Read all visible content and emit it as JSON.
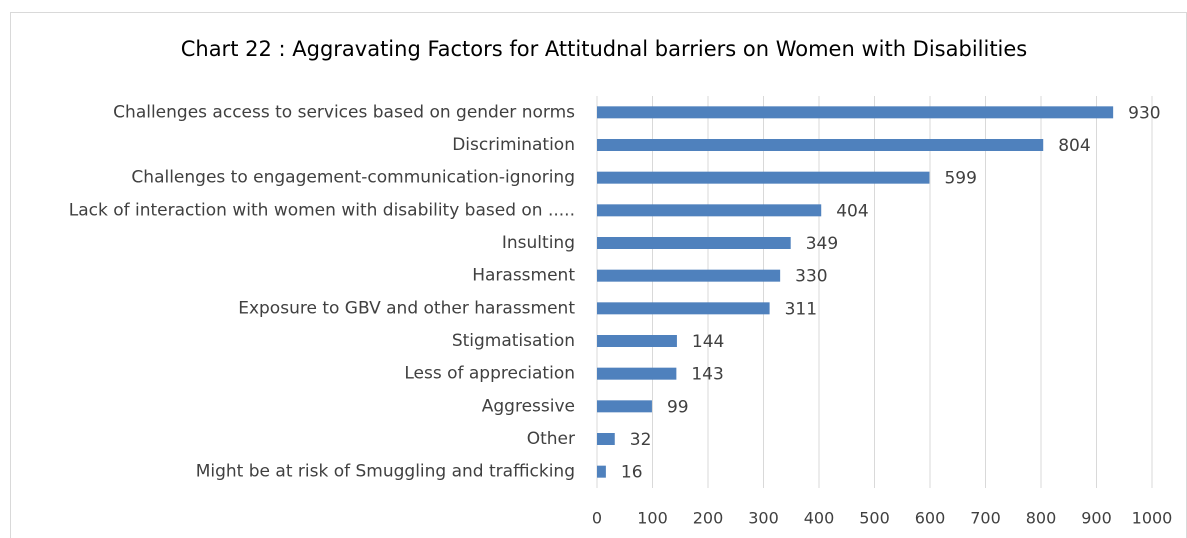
{
  "chart_data": {
    "type": "barh",
    "title": "Chart 22 : Aggravating  Factors  for Attitudnal barriers  on Women with Disabilities",
    "categories": [
      "Challenges access to services based on gender norms",
      "Discrimination",
      "Challenges to engagement-communication-ignoring",
      "Lack of interaction with women with disability based on .....",
      "Insulting",
      "Harassment",
      "Exposure to GBV and other harassment",
      "Stigmatisation",
      "Less of appreciation",
      "Aggressive",
      "Other",
      "Might be at risk of Smuggling and trafficking"
    ],
    "values": [
      930,
      804,
      599,
      404,
      349,
      330,
      311,
      144,
      143,
      99,
      32,
      16
    ],
    "color": "#4f81bd",
    "xlim": [
      0,
      1000
    ],
    "xticks": [
      0,
      100,
      200,
      300,
      400,
      500,
      600,
      700,
      800,
      900,
      1000
    ],
    "grid": true
  }
}
